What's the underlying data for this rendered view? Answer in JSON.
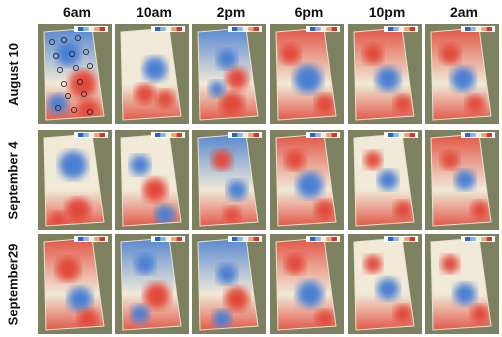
{
  "columns": [
    "6am",
    "10am",
    "2pm",
    "6pm",
    "10pm",
    "2am"
  ],
  "rows": [
    "August 10",
    "September 4",
    "September29"
  ],
  "colorbar_colors": [
    "#2f62c9",
    "#8db6e6",
    "#eef1de",
    "#f4a07a",
    "#d9342b"
  ],
  "field_colors": {
    "cool": "#4b7fd1",
    "warm": "#e14a3b",
    "neutral": "#f1ead8",
    "ground": "#6f7d5a",
    "soil": "#9a8a6a"
  }
}
